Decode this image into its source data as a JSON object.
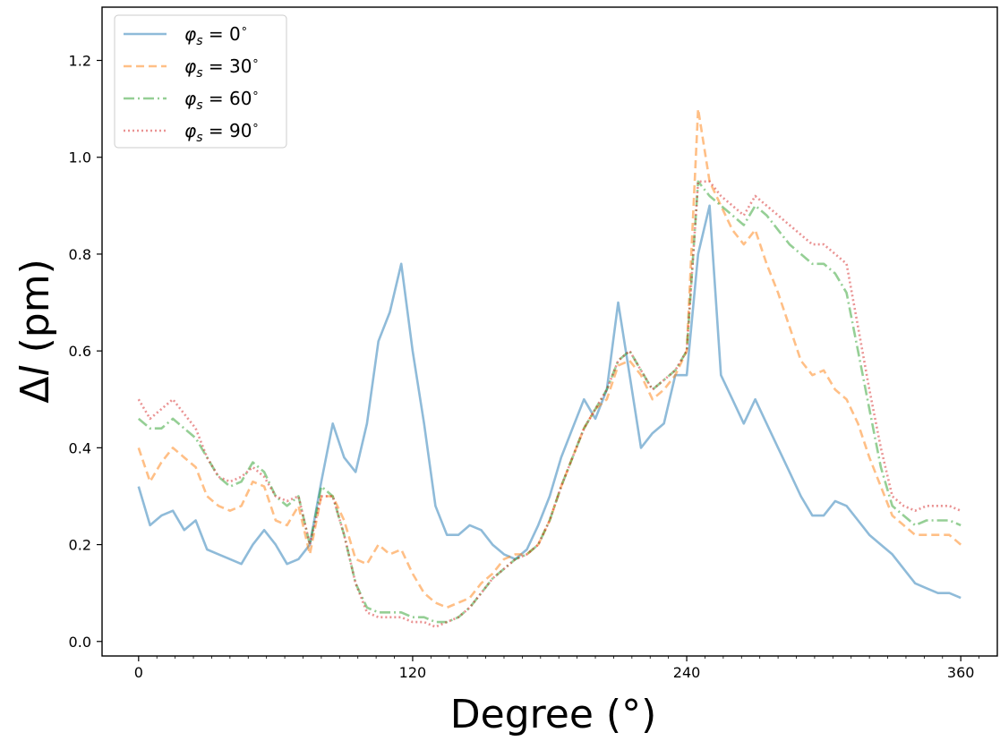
{
  "chart_data": {
    "type": "line",
    "title": "",
    "xlabel": "Degree (°)",
    "ylabel_symbol": "Δ",
    "ylabel_var": "l",
    "ylabel_unit": " (pm)",
    "xlim": [
      -16,
      376
    ],
    "ylim": [
      -0.03,
      1.31
    ],
    "xticks": [
      0,
      120,
      240,
      360
    ],
    "xtick_labels": [
      "0",
      "120",
      "240",
      "360"
    ],
    "yticks": [
      0.0,
      0.2,
      0.4,
      0.6,
      0.8,
      1.0,
      1.2
    ],
    "ytick_labels": [
      "0.0",
      "0.2",
      "0.4",
      "0.6",
      "0.8",
      "1.0",
      "1.2"
    ],
    "grid": false,
    "legend_position": "top-left",
    "x": [
      0,
      5,
      10,
      15,
      20,
      25,
      30,
      35,
      40,
      45,
      50,
      55,
      60,
      65,
      70,
      75,
      80,
      85,
      90,
      95,
      100,
      105,
      110,
      115,
      120,
      125,
      130,
      135,
      140,
      145,
      150,
      155,
      160,
      165,
      170,
      175,
      180,
      185,
      190,
      195,
      200,
      205,
      210,
      215,
      220,
      225,
      230,
      235,
      240,
      245,
      250,
      255,
      260,
      265,
      270,
      275,
      280,
      285,
      290,
      295,
      300,
      305,
      310,
      315,
      320,
      325,
      330,
      335,
      340,
      345,
      350,
      355,
      360
    ],
    "series": [
      {
        "name": "= 0",
        "phi_sub": "s",
        "unit_sup": "∘",
        "color": "#1f77b4",
        "dash": "",
        "values": [
          0.32,
          0.24,
          0.26,
          0.27,
          0.23,
          0.25,
          0.19,
          0.18,
          0.17,
          0.16,
          0.2,
          0.23,
          0.2,
          0.16,
          0.17,
          0.2,
          0.33,
          0.45,
          0.38,
          0.35,
          0.45,
          0.62,
          0.68,
          0.78,
          0.6,
          0.45,
          0.28,
          0.22,
          0.22,
          0.24,
          0.23,
          0.2,
          0.18,
          0.17,
          0.19,
          0.24,
          0.3,
          0.38,
          0.44,
          0.5,
          0.46,
          0.52,
          0.7,
          0.55,
          0.4,
          0.43,
          0.45,
          0.55,
          0.55,
          0.8,
          0.9,
          0.55,
          0.5,
          0.45,
          0.5,
          0.45,
          0.4,
          0.35,
          0.3,
          0.26,
          0.26,
          0.29,
          0.28,
          0.25,
          0.22,
          0.2,
          0.18,
          0.15,
          0.12,
          0.11,
          0.1,
          0.1,
          0.09
        ]
      },
      {
        "name": "= 30",
        "phi_sub": "s",
        "unit_sup": "∘",
        "color": "#ff7f0e",
        "dash": "9,5",
        "values": [
          0.4,
          0.33,
          0.37,
          0.4,
          0.38,
          0.36,
          0.3,
          0.28,
          0.27,
          0.28,
          0.33,
          0.32,
          0.25,
          0.24,
          0.28,
          0.18,
          0.3,
          0.3,
          0.25,
          0.17,
          0.16,
          0.2,
          0.18,
          0.19,
          0.14,
          0.1,
          0.08,
          0.07,
          0.08,
          0.09,
          0.12,
          0.14,
          0.17,
          0.18,
          0.18,
          0.2,
          0.25,
          0.32,
          0.38,
          0.44,
          0.48,
          0.5,
          0.57,
          0.58,
          0.55,
          0.5,
          0.52,
          0.55,
          0.6,
          1.1,
          0.95,
          0.9,
          0.85,
          0.82,
          0.85,
          0.78,
          0.72,
          0.65,
          0.58,
          0.55,
          0.56,
          0.52,
          0.5,
          0.45,
          0.38,
          0.32,
          0.26,
          0.24,
          0.22,
          0.22,
          0.22,
          0.22,
          0.2
        ]
      },
      {
        "name": "= 60",
        "phi_sub": "s",
        "unit_sup": "∘",
        "color": "#2ca02c",
        "dash": "12,4,2,4",
        "values": [
          0.46,
          0.44,
          0.44,
          0.46,
          0.44,
          0.42,
          0.38,
          0.34,
          0.32,
          0.33,
          0.37,
          0.35,
          0.3,
          0.28,
          0.3,
          0.2,
          0.32,
          0.3,
          0.22,
          0.12,
          0.07,
          0.06,
          0.06,
          0.06,
          0.05,
          0.05,
          0.04,
          0.04,
          0.05,
          0.07,
          0.1,
          0.13,
          0.15,
          0.17,
          0.18,
          0.2,
          0.25,
          0.32,
          0.38,
          0.44,
          0.48,
          0.52,
          0.58,
          0.6,
          0.56,
          0.52,
          0.54,
          0.56,
          0.6,
          0.95,
          0.92,
          0.9,
          0.88,
          0.86,
          0.9,
          0.88,
          0.85,
          0.82,
          0.8,
          0.78,
          0.78,
          0.76,
          0.72,
          0.6,
          0.48,
          0.36,
          0.28,
          0.26,
          0.24,
          0.25,
          0.25,
          0.25,
          0.24
        ]
      },
      {
        "name": "= 90",
        "phi_sub": "s",
        "unit_sup": "∘",
        "color": "#d62728",
        "dash": "2,3",
        "values": [
          0.5,
          0.46,
          0.48,
          0.5,
          0.47,
          0.44,
          0.38,
          0.34,
          0.33,
          0.34,
          0.36,
          0.34,
          0.3,
          0.29,
          0.3,
          0.2,
          0.3,
          0.3,
          0.22,
          0.12,
          0.06,
          0.05,
          0.05,
          0.05,
          0.04,
          0.04,
          0.03,
          0.04,
          0.05,
          0.07,
          0.1,
          0.13,
          0.15,
          0.17,
          0.18,
          0.2,
          0.25,
          0.32,
          0.38,
          0.44,
          0.48,
          0.52,
          0.58,
          0.6,
          0.56,
          0.52,
          0.54,
          0.56,
          0.6,
          0.95,
          0.95,
          0.92,
          0.9,
          0.88,
          0.92,
          0.9,
          0.88,
          0.86,
          0.84,
          0.82,
          0.82,
          0.8,
          0.78,
          0.65,
          0.52,
          0.4,
          0.3,
          0.28,
          0.27,
          0.28,
          0.28,
          0.28,
          0.27
        ]
      }
    ]
  }
}
